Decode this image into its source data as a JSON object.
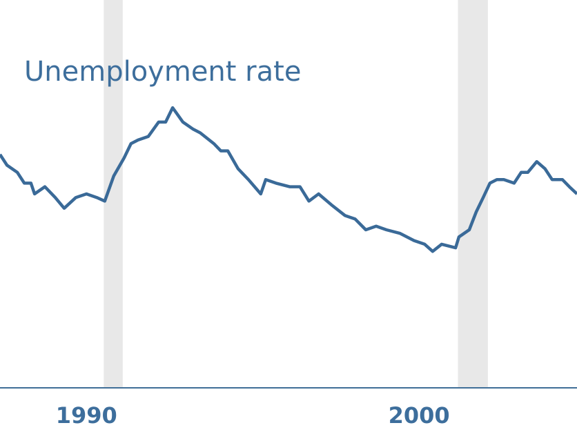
{
  "chart_data": {
    "type": "line",
    "title": "Unemployment rate",
    "x": [
      1987.4,
      1987.61,
      1987.92,
      1988.13,
      1988.33,
      1988.44,
      1988.75,
      1989.06,
      1989.33,
      1989.68,
      1990.0,
      1990.31,
      1990.55,
      1990.82,
      1991.13,
      1991.34,
      1991.55,
      1991.86,
      1992.17,
      1992.38,
      1992.59,
      1992.9,
      1993.21,
      1993.42,
      1993.83,
      1994.04,
      1994.25,
      1994.56,
      1994.87,
      1995.24,
      1995.39,
      1995.7,
      1996.11,
      1996.42,
      1996.69,
      1996.98,
      1997.36,
      1997.77,
      1998.08,
      1998.4,
      1998.71,
      1999.02,
      1999.43,
      1999.85,
      2000.17,
      2000.41,
      2000.68,
      2001.1,
      2001.2,
      2001.51,
      2001.72,
      2001.93,
      2002.13,
      2002.34,
      2002.55,
      2002.86,
      2003.07,
      2003.27,
      2003.54,
      2003.79,
      2004.0,
      2004.31,
      2004.52,
      2004.75
    ],
    "values": [
      6.5,
      6.2,
      6.0,
      5.7,
      5.7,
      5.4,
      5.6,
      5.3,
      5.0,
      5.3,
      5.4,
      5.3,
      5.2,
      5.9,
      6.4,
      6.8,
      6.9,
      7.0,
      7.4,
      7.4,
      7.8,
      7.4,
      7.2,
      7.1,
      6.8,
      6.6,
      6.6,
      6.1,
      5.8,
      5.4,
      5.8,
      5.7,
      5.6,
      5.6,
      5.2,
      5.4,
      5.1,
      4.8,
      4.7,
      4.4,
      4.5,
      4.4,
      4.3,
      4.1,
      4.0,
      3.8,
      4.0,
      3.9,
      4.2,
      4.4,
      4.9,
      5.3,
      5.7,
      5.8,
      5.8,
      5.7,
      6.0,
      6.0,
      6.3,
      6.1,
      5.8,
      5.8,
      5.6,
      5.4
    ],
    "color": "#3a6a98",
    "recessions": [
      [
        1990.52,
        1991.09
      ],
      [
        2001.17,
        2002.07
      ]
    ],
    "recession_color": "#e8e8e8",
    "xlim": [
      1987.4,
      2004.75
    ],
    "xticks": [
      1990,
      2000
    ],
    "ylim": [
      0,
      10.8
    ]
  }
}
